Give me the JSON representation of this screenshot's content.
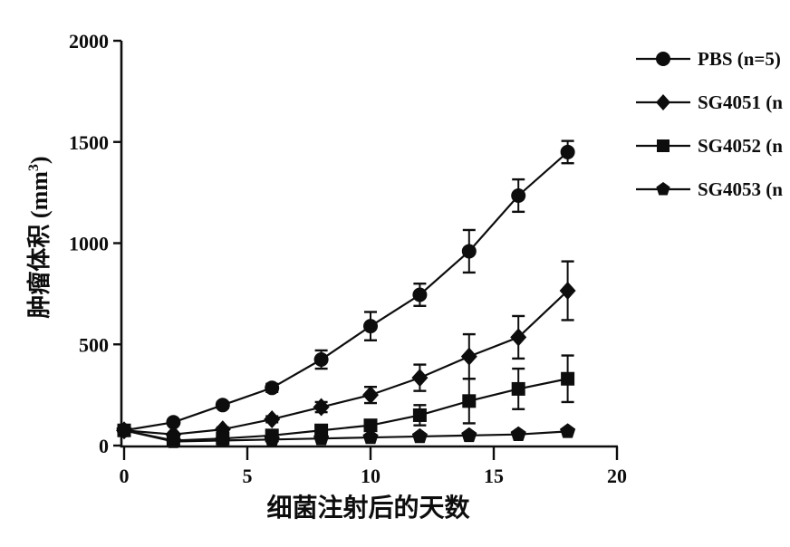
{
  "figure": {
    "background": "#ffffff",
    "ink_color": "#0d0d0d"
  },
  "chart_data": {
    "type": "line",
    "title": "",
    "xlabel": "细菌注射后的天数",
    "ylabel": "肿瘤体积 (mm3)",
    "ylabel_parts": {
      "prefix": "肿瘤体积 (mm",
      "sup": "3",
      "suffix": ")"
    },
    "xlim": [
      0,
      20
    ],
    "ylim": [
      0,
      2000
    ],
    "x_tick_labels": [
      "0",
      "5",
      "10",
      "15",
      "20"
    ],
    "x_tick_values": [
      0,
      5,
      10,
      15,
      20
    ],
    "y_tick_labels": [
      "0",
      "500",
      "1000",
      "1500",
      "2000"
    ],
    "y_tick_values": [
      0,
      500,
      1000,
      1500,
      2000
    ],
    "grid": false,
    "legend_position": "right-outside",
    "error_bars": true,
    "x": [
      0,
      2,
      4,
      6,
      8,
      10,
      12,
      14,
      16,
      18
    ],
    "series": [
      {
        "name": "PBS",
        "label": "PBS (n=5)",
        "marker": "circle",
        "values": [
          75,
          115,
          200,
          285,
          425,
          590,
          745,
          960,
          1235,
          1450
        ],
        "errors": [
          0,
          0,
          15,
          20,
          45,
          70,
          55,
          105,
          80,
          55
        ]
      },
      {
        "name": "SG4051",
        "label": "SG4051 (n",
        "marker": "diamond",
        "values": [
          75,
          55,
          80,
          130,
          190,
          250,
          335,
          440,
          535,
          765
        ],
        "errors": [
          0,
          0,
          10,
          15,
          25,
          40,
          65,
          110,
          105,
          145
        ]
      },
      {
        "name": "SG4052",
        "label": "SG4052 (n",
        "marker": "square",
        "values": [
          75,
          25,
          35,
          50,
          75,
          100,
          150,
          220,
          280,
          330
        ],
        "errors": [
          0,
          0,
          0,
          10,
          15,
          25,
          50,
          110,
          100,
          115
        ]
      },
      {
        "name": "SG4053",
        "label": "SG4053 (n",
        "marker": "pentagon",
        "values": [
          75,
          20,
          25,
          30,
          35,
          40,
          45,
          50,
          55,
          70
        ],
        "errors": [
          0,
          0,
          0,
          0,
          0,
          0,
          0,
          0,
          0,
          0
        ]
      }
    ]
  }
}
